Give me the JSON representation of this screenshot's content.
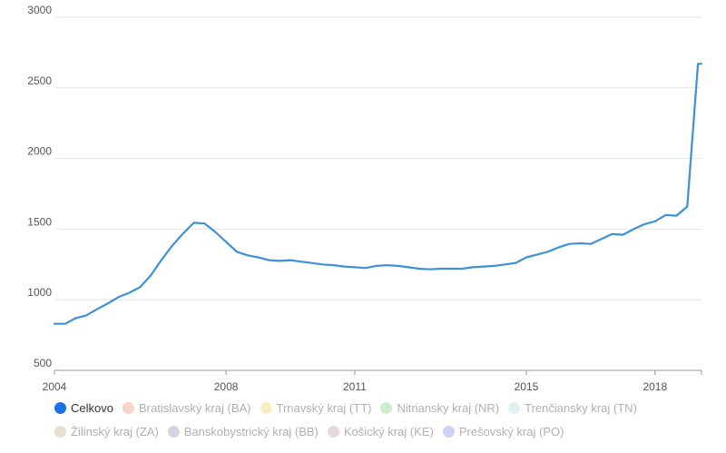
{
  "chart_data": {
    "type": "line",
    "title": "",
    "xlabel": "",
    "ylabel": "",
    "ylim": [
      500,
      3000
    ],
    "yticks": [
      500,
      1000,
      1500,
      2000,
      2500,
      3000
    ],
    "xticks": [
      2004,
      2008,
      2011,
      2015,
      2018
    ],
    "xlim": [
      2004,
      2019.083
    ],
    "grid": true,
    "legend_position": "bottom",
    "series": [
      {
        "name": "Celkovo",
        "color": "#3e90d8",
        "x": [
          2004,
          2004.25,
          2004.5,
          2004.75,
          2005,
          2005.25,
          2005.5,
          2005.75,
          2006,
          2006.25,
          2006.5,
          2006.75,
          2007,
          2007.25,
          2007.5,
          2007.75,
          2008,
          2008.25,
          2008.5,
          2008.75,
          2009,
          2009.25,
          2009.5,
          2009.75,
          2010,
          2010.25,
          2010.5,
          2010.75,
          2011,
          2011.25,
          2011.5,
          2011.75,
          2012,
          2012.25,
          2012.5,
          2012.75,
          2013,
          2013.25,
          2013.5,
          2013.75,
          2014,
          2014.25,
          2014.5,
          2014.75,
          2015,
          2015.25,
          2015.5,
          2015.75,
          2016,
          2016.25,
          2016.5,
          2016.75,
          2017,
          2017.25,
          2017.5,
          2017.75,
          2018,
          2018.25,
          2018.5,
          2018.75,
          2019,
          2019.083
        ],
        "values": [
          830,
          830,
          870,
          890,
          935,
          975,
          1020,
          1050,
          1090,
          1175,
          1285,
          1385,
          1470,
          1545,
          1540,
          1480,
          1410,
          1340,
          1315,
          1300,
          1280,
          1275,
          1280,
          1270,
          1260,
          1250,
          1245,
          1235,
          1230,
          1225,
          1240,
          1245,
          1240,
          1230,
          1220,
          1215,
          1220,
          1220,
          1220,
          1230,
          1235,
          1240,
          1250,
          1260,
          1300,
          1320,
          1340,
          1370,
          1395,
          1400,
          1395,
          1430,
          1465,
          1460,
          1500,
          1535,
          1555,
          1600,
          1595,
          1660,
          2670,
          2670
        ]
      }
    ]
  },
  "legend": [
    {
      "label": "Celkovo",
      "color": "#1a73e8",
      "active": true
    },
    {
      "label": "Bratislavský kraj (BA)",
      "color": "#f6d5c4",
      "active": false
    },
    {
      "label": "Trnavský kraj (TT)",
      "color": "#f8eec4",
      "active": false
    },
    {
      "label": "Nitriansky kraj (NR)",
      "color": "#cdeccb",
      "active": false
    },
    {
      "label": "Trenčiansky kraj (TN)",
      "color": "#e4eff0",
      "active": false
    },
    {
      "label": "Žilinský kraj (ZA)",
      "color": "#e7e0d0",
      "active": false
    },
    {
      "label": "Banskobystrický kraj (BB)",
      "color": "#d8d2e8",
      "active": false
    },
    {
      "label": "Košický kraj (KE)",
      "color": "#e8d6e0",
      "active": false
    },
    {
      "label": "Prešovský kraj (PO)",
      "color": "#cfd2f6",
      "active": false
    }
  ]
}
